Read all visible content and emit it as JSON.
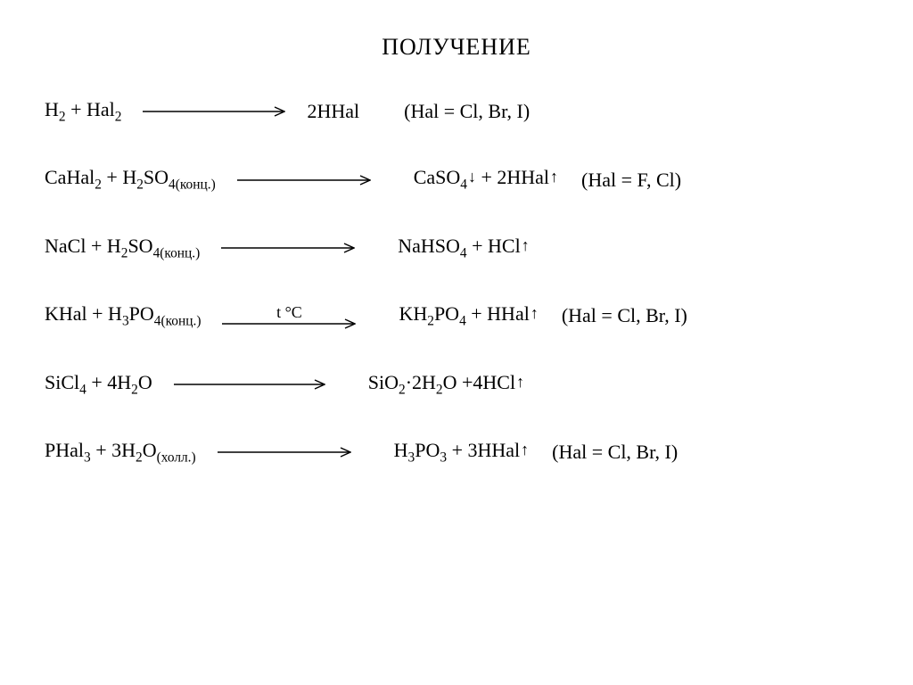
{
  "title": "ПОЛУЧЕНИЕ",
  "arrow_color": "#000000",
  "arrow_stroke": 1.4,
  "r1": {
    "lhs": "H<sub>2</sub> + Hal<sub>2</sub>",
    "arrow_len": 160,
    "rhs": "2HHal",
    "note": "(Hal = Cl, Br, I)"
  },
  "r2": {
    "lhs": "CaHal<sub>2</sub> + H<sub>2</sub>SO<sub>4(конц.)</sub>",
    "arrow_len": 150,
    "rhs": "CaSO<sub>4</sub><span class='down'>↓</span> + 2HHal<span class='up'>↑</span>",
    "note": "(Hal = F, Cl)"
  },
  "r3": {
    "lhs": "NaCl + H<sub>2</sub>SO<sub>4(конц.)</sub>",
    "arrow_len": 150,
    "rhs": "NaHSO<sub>4</sub> + HCl<span class='up'>↑</span>"
  },
  "r4": {
    "lhs": "KHal + H<sub>3</sub>PO<sub>4(конц.)</sub>",
    "arrow_len": 150,
    "cond": "t °C",
    "rhs": "KH<sub>2</sub>PO<sub>4</sub> + HHal<span class='up'>↑</span>",
    "note": "(Hal = Cl, Br, I)"
  },
  "r5": {
    "lhs": "SiCl<sub>4</sub> + 4H<sub>2</sub>O",
    "arrow_len": 170,
    "rhs": "SiO<sub>2</sub>·2H<sub>2</sub>O +4HCl<span class='up'>↑</span>"
  },
  "r6": {
    "lhs": "PHal<sub>3</sub> + 3H<sub>2</sub>O<sub>(холл.)</sub>",
    "arrow_len": 150,
    "rhs": "H<sub>3</sub>PO<sub>3</sub> + 3HHal<span class='up'>↑</span>",
    "note": "(Hal = Cl, Br, I)"
  }
}
